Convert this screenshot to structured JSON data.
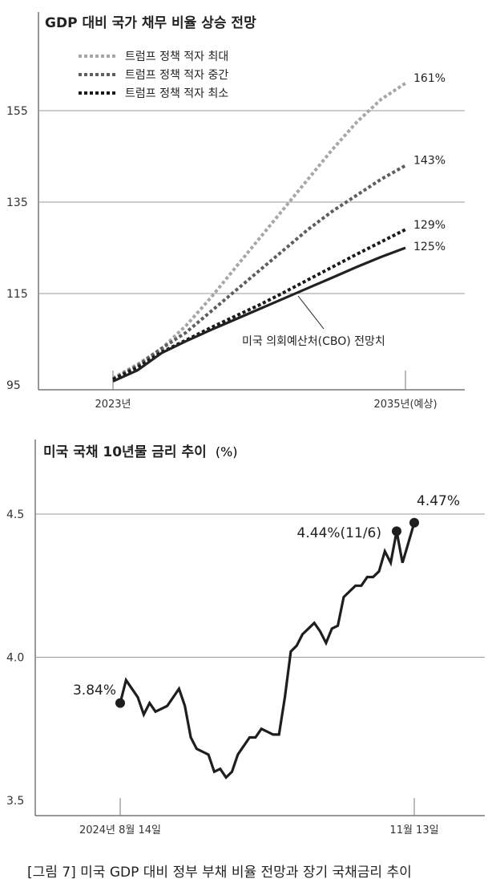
{
  "caption": "[그림 7] 미국 GDP 대비 정부 부채 비율 전망과 장기 국채금리 추이",
  "colors": {
    "max": "#a6a6a6",
    "mid": "#5e5e5e",
    "min": "#1a1a1a",
    "cbo": "#222222",
    "grid": "#9a9a9a"
  },
  "chart_data": [
    {
      "type": "line",
      "title": "GDP 대비 국가 채무 비율 상승 전망",
      "xlabel": "",
      "ylabel": "",
      "ylim": [
        93,
        170
      ],
      "yticks": [
        95,
        115,
        135,
        155
      ],
      "x_tick_labels": [
        "2023년",
        "2035년(예상)"
      ],
      "xlim": [
        2022.2,
        2037.2
      ],
      "x": [
        2023,
        2024,
        2025,
        2026,
        2027,
        2028,
        2029,
        2030,
        2031,
        2032,
        2033,
        2034,
        2035
      ],
      "series": [
        {
          "name": "트럼프 정책 적자 최대",
          "style": "dotted",
          "color": "max",
          "end_label": "161%",
          "values": [
            96.5,
            99.5,
            103,
            108,
            114,
            120.5,
            127,
            133.5,
            140,
            146.5,
            152.5,
            157.5,
            161
          ]
        },
        {
          "name": "트럼프 정책 적자 중간",
          "style": "dotted",
          "color": "mid",
          "end_label": "143%",
          "values": [
            96.3,
            99.2,
            103,
            106.5,
            111,
            115.5,
            120,
            124.5,
            129,
            133,
            136.5,
            140,
            143
          ]
        },
        {
          "name": "트럼프 정책 적자 최소",
          "style": "dotted",
          "color": "min",
          "end_label": "129%",
          "values": [
            96.2,
            98.8,
            102.2,
            104.8,
            107.5,
            110,
            112.5,
            115.2,
            118,
            120.8,
            123.6,
            126.3,
            129
          ]
        },
        {
          "name": "",
          "style": "solid",
          "color": "cbo",
          "end_label": "125%",
          "values": [
            95.8,
            98.2,
            102,
            104.6,
            107,
            109.3,
            111.6,
            113.9,
            116.2,
            118.5,
            120.8,
            123,
            125
          ]
        }
      ],
      "annotation": "미국 의회예산처(CBO) 전망치"
    },
    {
      "type": "line",
      "title": "미국 국채 10년물 금리 추이",
      "title_unit": "(%)",
      "xlabel": "",
      "ylabel": "",
      "ylim": [
        3.5,
        4.5
      ],
      "yticks": [
        3.5,
        4.0,
        4.5
      ],
      "x_tick_labels": [
        "2024년 8월 14일",
        "11월 13일"
      ],
      "series": [
        {
          "name": "",
          "values": [
            3.84,
            3.92,
            3.89,
            3.86,
            3.8,
            3.84,
            3.81,
            3.82,
            3.83,
            3.86,
            3.89,
            3.83,
            3.72,
            3.68,
            3.67,
            3.66,
            3.6,
            3.61,
            3.58,
            3.6,
            3.66,
            3.69,
            3.72,
            3.72,
            3.75,
            3.74,
            3.73,
            3.73,
            3.86,
            4.02,
            4.04,
            4.08,
            4.1,
            4.12,
            4.09,
            4.05,
            4.1,
            4.11,
            4.21,
            4.23,
            4.25,
            4.25,
            4.28,
            4.28,
            4.3,
            4.37,
            4.33,
            4.44,
            4.33,
            4.4,
            4.47
          ]
        }
      ],
      "labels": {
        "start": "3.84%",
        "peak": "4.44%(11/6)",
        "end": "4.47%"
      }
    }
  ]
}
